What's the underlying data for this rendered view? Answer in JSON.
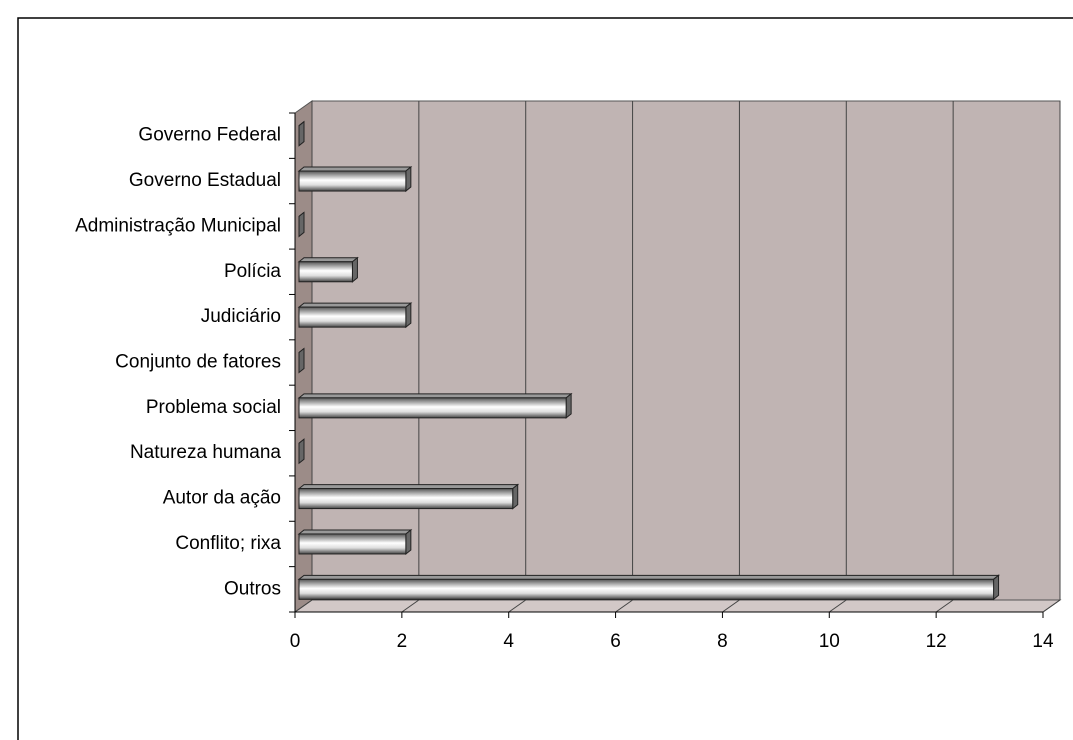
{
  "chart_data": {
    "type": "bar",
    "orientation": "horizontal",
    "categories": [
      "Governo Federal",
      "Governo Estadual",
      "Administração Municipal",
      "Polícia",
      "Judiciário",
      "Conjunto de fatores",
      "Problema social",
      "Natureza humana",
      "Autor da ação",
      "Conflito; rixa",
      "Outros"
    ],
    "values": [
      0,
      2,
      0,
      1,
      2,
      0,
      5,
      0,
      4,
      2,
      13
    ],
    "color": "#ffffff",
    "xlim": [
      0,
      14
    ],
    "xticks": [
      0,
      2,
      4,
      6,
      8,
      10,
      12,
      14
    ],
    "grid": true
  }
}
